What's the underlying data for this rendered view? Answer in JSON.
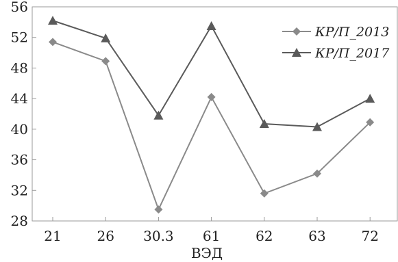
{
  "chart_data": {
    "type": "line",
    "title": "",
    "xlabel": "ВЭД",
    "ylabel": "",
    "categories": [
      "21",
      "26",
      "30.3",
      "61",
      "62",
      "63",
      "72"
    ],
    "ylim": [
      28,
      56
    ],
    "yticks": [
      28,
      32,
      36,
      40,
      44,
      48,
      52,
      56
    ],
    "grid": false,
    "legend_position": "top-right",
    "series": [
      {
        "name": "КР/П_2013",
        "marker": "diamond",
        "color": "#8a8a8a",
        "values": [
          51.4,
          48.9,
          29.5,
          44.2,
          31.6,
          34.2,
          40.9
        ]
      },
      {
        "name": "КР/П_2017",
        "marker": "triangle",
        "color": "#5a5a5a",
        "values": [
          54.2,
          51.9,
          41.8,
          53.5,
          40.7,
          40.3,
          44.0
        ]
      }
    ]
  }
}
